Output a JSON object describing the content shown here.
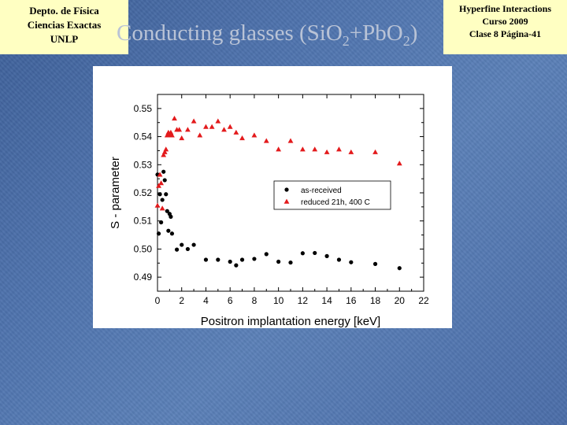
{
  "header": {
    "left": [
      "Depto. de Física",
      "Ciencias Exactas",
      "UNLP"
    ],
    "right": [
      "Hyperfine Interactions",
      "Curso 2009",
      "Clase 8  Página-41"
    ]
  },
  "title": {
    "prefix": "Conducting glasses (SiO",
    "sub1": "2",
    "middle": "+PbO",
    "sub2": "2",
    "suffix": ")"
  },
  "colors": {
    "as_received": "#000000",
    "reduced": "#e31a1c",
    "header_box": "#ffffc2"
  },
  "chart_data": {
    "type": "scatter",
    "xlabel": "Positron implantation energy [keV]",
    "ylabel": "S - parameter",
    "xlim": [
      0,
      22
    ],
    "ylim": [
      0.485,
      0.555
    ],
    "xticks": [
      0,
      2,
      4,
      6,
      8,
      10,
      12,
      14,
      16,
      18,
      20,
      22
    ],
    "yticks": [
      0.49,
      0.5,
      0.51,
      0.52,
      0.53,
      0.54,
      0.55
    ],
    "legend_position": "center-right",
    "series": [
      {
        "name": "as-received",
        "marker": "circle",
        "color": "#000000",
        "x": [
          0.0,
          0.1,
          0.2,
          0.3,
          0.4,
          0.5,
          0.6,
          0.7,
          0.8,
          0.9,
          1.0,
          1.1,
          1.2,
          1.6,
          2.0,
          2.5,
          3.0,
          4.0,
          5.0,
          6.0,
          6.5,
          7.0,
          8.0,
          9.0,
          10.0,
          11.0,
          12.0,
          13.0,
          14.0,
          15.0,
          16.0,
          18.0,
          20.0
        ],
        "y": [
          0.5265,
          0.5055,
          0.5195,
          0.5095,
          0.5175,
          0.5275,
          0.5245,
          0.5195,
          0.5135,
          0.5065,
          0.5125,
          0.5115,
          0.5055,
          0.4998,
          0.5015,
          0.5,
          0.5015,
          0.4962,
          0.4962,
          0.4955,
          0.4942,
          0.4962,
          0.4965,
          0.4982,
          0.4955,
          0.4952,
          0.4985,
          0.4986,
          0.4975,
          0.4962,
          0.4953,
          0.4947,
          0.4932
        ]
      },
      {
        "name": "reduced 21h, 400 C",
        "marker": "triangle",
        "color": "#e31a1c",
        "x": [
          0.0,
          0.1,
          0.2,
          0.3,
          0.4,
          0.5,
          0.6,
          0.7,
          0.8,
          0.9,
          1.0,
          1.1,
          1.2,
          1.4,
          1.6,
          1.8,
          2.0,
          2.5,
          3.0,
          3.5,
          4.0,
          4.5,
          5.0,
          5.5,
          6.0,
          6.5,
          7.0,
          8.0,
          9.0,
          10.0,
          11.0,
          12.0,
          13.0,
          14.0,
          15.0,
          16.0,
          18.0,
          20.0
        ],
        "y": [
          0.5155,
          0.5225,
          0.5265,
          0.5235,
          0.5145,
          0.5335,
          0.5345,
          0.5355,
          0.5405,
          0.5415,
          0.5405,
          0.5415,
          0.5405,
          0.5465,
          0.5425,
          0.5425,
          0.5395,
          0.5425,
          0.5455,
          0.5405,
          0.5435,
          0.5435,
          0.5455,
          0.5425,
          0.5435,
          0.5415,
          0.5395,
          0.5405,
          0.5385,
          0.5355,
          0.5385,
          0.5355,
          0.5355,
          0.5345,
          0.5355,
          0.5345,
          0.5345,
          0.5305
        ]
      }
    ]
  }
}
